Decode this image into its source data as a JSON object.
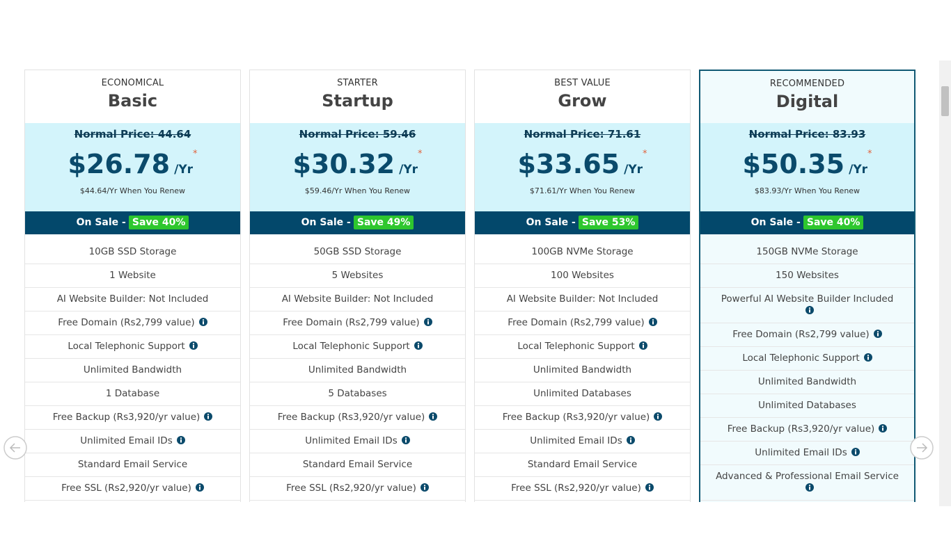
{
  "plans": [
    {
      "label": "ECONOMICAL",
      "name": "Basic",
      "normal_price": "Normal Price: 44.64",
      "price": "$26.78",
      "period": "/Yr",
      "asterisk": "*",
      "renew": "$44.64/Yr When You Renew",
      "sale": "On Sale -",
      "save": "Save 40%",
      "recommended": false,
      "features": [
        {
          "text": "10GB SSD Storage",
          "info": false
        },
        {
          "text": "1 Website",
          "info": false
        },
        {
          "text": "AI Website Builder: Not Included",
          "info": false
        },
        {
          "text": "Free Domain (Rs2,799 value)",
          "info": true
        },
        {
          "text": "Local Telephonic Support",
          "info": true
        },
        {
          "text": "Unlimited Bandwidth",
          "info": false
        },
        {
          "text": "1 Database",
          "info": false
        },
        {
          "text": "Free Backup (Rs3,920/yr value)",
          "info": true
        },
        {
          "text": "Unlimited Email IDs",
          "info": true
        },
        {
          "text": "Standard Email Service",
          "info": false
        },
        {
          "text": "Free SSL (Rs2,920/yr value)",
          "info": true
        }
      ]
    },
    {
      "label": "STARTER",
      "name": "Startup",
      "normal_price": "Normal Price: 59.46",
      "price": "$30.32",
      "period": "/Yr",
      "asterisk": "*",
      "renew": "$59.46/Yr When You Renew",
      "sale": "On Sale -",
      "save": "Save 49%",
      "recommended": false,
      "features": [
        {
          "text": "50GB SSD Storage",
          "info": false
        },
        {
          "text": "5 Websites",
          "info": false
        },
        {
          "text": "AI Website Builder: Not Included",
          "info": false
        },
        {
          "text": "Free Domain (Rs2,799 value)",
          "info": true
        },
        {
          "text": "Local Telephonic Support",
          "info": true
        },
        {
          "text": "Unlimited Bandwidth",
          "info": false
        },
        {
          "text": "5 Databases",
          "info": false
        },
        {
          "text": "Free Backup (Rs3,920/yr value)",
          "info": true
        },
        {
          "text": "Unlimited Email IDs",
          "info": true
        },
        {
          "text": "Standard Email Service",
          "info": false
        },
        {
          "text": "Free SSL (Rs2,920/yr value)",
          "info": true
        }
      ]
    },
    {
      "label": "BEST VALUE",
      "name": "Grow",
      "normal_price": "Normal Price: 71.61",
      "price": "$33.65",
      "period": "/Yr",
      "asterisk": "*",
      "renew": "$71.61/Yr When You Renew",
      "sale": "On Sale -",
      "save": "Save 53%",
      "recommended": false,
      "features": [
        {
          "text": "100GB NVMe Storage",
          "info": false
        },
        {
          "text": "100 Websites",
          "info": false
        },
        {
          "text": "AI Website Builder: Not Included",
          "info": false
        },
        {
          "text": "Free Domain (Rs2,799 value)",
          "info": true
        },
        {
          "text": "Local Telephonic Support",
          "info": true
        },
        {
          "text": "Unlimited Bandwidth",
          "info": false
        },
        {
          "text": "Unlimited Databases",
          "info": false
        },
        {
          "text": "Free Backup (Rs3,920/yr value)",
          "info": true
        },
        {
          "text": "Unlimited Email IDs",
          "info": true
        },
        {
          "text": "Standard Email Service",
          "info": false
        },
        {
          "text": "Free SSL (Rs2,920/yr value)",
          "info": true
        }
      ]
    },
    {
      "label": "RECOMMENDED",
      "name": "Digital",
      "normal_price": "Normal Price: 83.93",
      "price": "$50.35",
      "period": "/Yr",
      "asterisk": "*",
      "renew": "$83.93/Yr When You Renew",
      "sale": "On Sale -",
      "save": "Save 40%",
      "recommended": true,
      "features": [
        {
          "text": "150GB NVMe Storage",
          "info": false
        },
        {
          "text": "150 Websites",
          "info": false
        },
        {
          "text": "Powerful AI Website Builder Included",
          "info": true
        },
        {
          "text": "Free Domain (Rs2,799 value)",
          "info": true
        },
        {
          "text": "Local Telephonic Support",
          "info": true
        },
        {
          "text": "Unlimited Bandwidth",
          "info": false
        },
        {
          "text": "Unlimited Databases",
          "info": false
        },
        {
          "text": "Free Backup (Rs3,920/yr value)",
          "info": true
        },
        {
          "text": "Unlimited Email IDs",
          "info": true
        },
        {
          "text": "Advanced & Professional Email Service",
          "info": true
        }
      ]
    }
  ]
}
